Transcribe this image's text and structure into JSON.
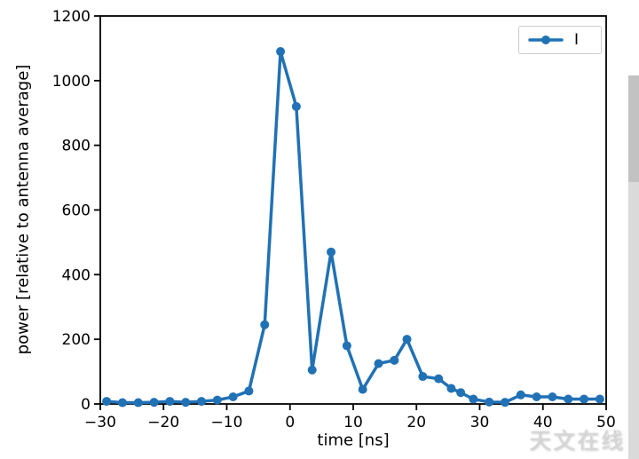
{
  "watermark": {
    "text": "天文在线"
  },
  "chart_data": {
    "type": "line",
    "title": "",
    "xlabel": "time [ns]",
    "ylabel": "power [relative to antenna average]",
    "xlim": [
      -30,
      50
    ],
    "ylim": [
      0,
      1200
    ],
    "xticks": [
      -30,
      -20,
      -10,
      0,
      10,
      20,
      30,
      40,
      50
    ],
    "yticks": [
      0,
      200,
      400,
      600,
      800,
      1000,
      1200
    ],
    "grid": false,
    "axis_color": "#000000",
    "background_color": "#ffffff",
    "legend": {
      "position": "upper right",
      "border_color": "#cccccc",
      "entries": [
        {
          "label": "I",
          "color": "#2171b5",
          "marker": "circle"
        }
      ]
    },
    "series": [
      {
        "name": "I",
        "color": "#2171b5",
        "marker": "circle",
        "line_width": 3.5,
        "x": [
          -29,
          -26.5,
          -24,
          -21.5,
          -19,
          -16.5,
          -14,
          -11.5,
          -9,
          -6.5,
          -4,
          -1.5,
          1,
          3.5,
          6.5,
          9,
          11.5,
          14,
          16.5,
          18.5,
          21,
          23.5,
          25.5,
          27,
          29,
          31.5,
          34,
          36.5,
          39,
          41.5,
          44,
          46.5,
          49
        ],
        "y": [
          8,
          4,
          4,
          5,
          8,
          5,
          8,
          12,
          22,
          40,
          245,
          1090,
          920,
          105,
          470,
          180,
          45,
          125,
          135,
          200,
          85,
          78,
          48,
          35,
          15,
          6,
          5,
          28,
          22,
          22,
          15,
          15,
          15
        ]
      }
    ]
  }
}
